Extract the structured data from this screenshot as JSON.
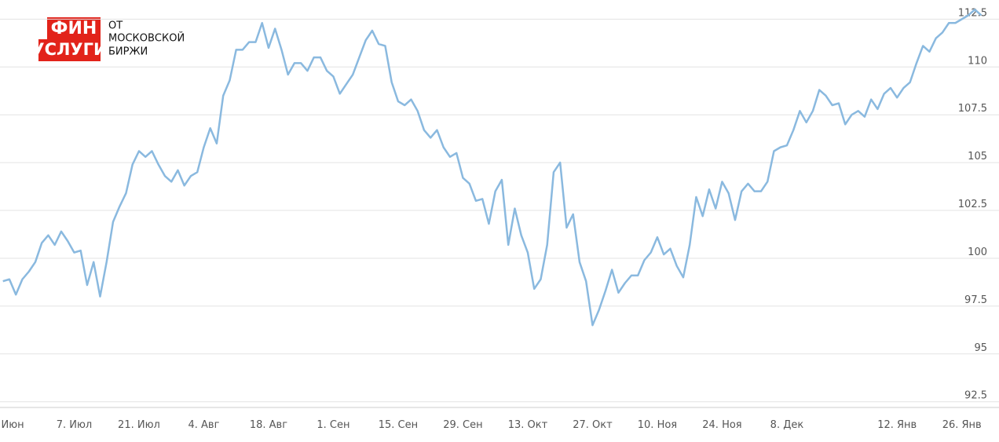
{
  "logo": {
    "line1": "ФИН",
    "line2": "УСЛУГИ",
    "caption": [
      "ОТ",
      "МОСКОВСКОЙ",
      "БИРЖИ"
    ]
  },
  "chart_data": {
    "type": "line",
    "color": "#8ab9df",
    "grid": true,
    "ylim": [
      92.2,
      113.5
    ],
    "yticks": [
      92.5,
      95,
      97.5,
      100,
      102.5,
      105,
      107.5,
      110,
      112.5
    ],
    "categories": [
      null,
      ". Июн",
      null,
      null,
      null,
      null,
      null,
      null,
      null,
      null,
      null,
      "7. Июл",
      null,
      null,
      null,
      null,
      null,
      null,
      null,
      null,
      null,
      "21. Июл",
      null,
      null,
      null,
      null,
      null,
      null,
      null,
      null,
      null,
      "4. Авг",
      null,
      null,
      null,
      null,
      null,
      null,
      null,
      null,
      null,
      "18. Авг",
      null,
      null,
      null,
      null,
      null,
      null,
      null,
      null,
      null,
      "1. Сен",
      null,
      null,
      null,
      null,
      null,
      null,
      null,
      null,
      null,
      "15. Сен",
      null,
      null,
      null,
      null,
      null,
      null,
      null,
      null,
      null,
      "29. Сен",
      null,
      null,
      null,
      null,
      null,
      null,
      null,
      null,
      null,
      "13. Окт",
      null,
      null,
      null,
      null,
      null,
      null,
      null,
      null,
      null,
      "27. Окт",
      null,
      null,
      null,
      null,
      null,
      null,
      null,
      null,
      null,
      "10. Ноя",
      null,
      null,
      null,
      null,
      null,
      null,
      null,
      null,
      null,
      "24. Ноя",
      null,
      null,
      null,
      null,
      null,
      null,
      null,
      null,
      null,
      "8. Дек",
      null,
      null,
      null,
      null,
      null,
      null,
      null,
      null,
      null,
      null,
      null,
      null,
      null,
      null,
      null,
      null,
      "12. Янв",
      null,
      null,
      null,
      null,
      null,
      null,
      null,
      null,
      null,
      "26. Янв",
      null,
      null,
      null
    ],
    "values": [
      98.8,
      98.9,
      98.1,
      98.9,
      99.3,
      99.8,
      100.8,
      101.2,
      100.7,
      101.4,
      100.9,
      100.3,
      100.4,
      98.6,
      99.8,
      98.0,
      99.8,
      101.9,
      102.7,
      103.4,
      104.9,
      105.6,
      105.3,
      105.6,
      104.9,
      104.3,
      104.0,
      104.6,
      103.8,
      104.3,
      104.5,
      105.8,
      106.8,
      106.0,
      108.5,
      109.3,
      110.9,
      110.9,
      111.3,
      111.3,
      112.3,
      111.0,
      112.0,
      110.9,
      109.6,
      110.2,
      110.2,
      109.8,
      110.5,
      110.5,
      109.8,
      109.5,
      108.6,
      109.1,
      109.6,
      110.5,
      111.4,
      111.9,
      111.2,
      111.1,
      109.2,
      108.2,
      108.0,
      108.3,
      107.7,
      106.7,
      106.3,
      106.7,
      105.8,
      105.3,
      105.5,
      104.2,
      103.9,
      103.0,
      103.1,
      101.8,
      103.5,
      104.1,
      100.7,
      102.6,
      101.2,
      100.3,
      98.4,
      98.9,
      100.7,
      104.5,
      105.0,
      101.6,
      102.3,
      99.8,
      98.8,
      96.5,
      97.3,
      98.3,
      99.4,
      98.2,
      98.7,
      99.1,
      99.1,
      99.9,
      100.3,
      101.1,
      100.2,
      100.5,
      99.6,
      99.0,
      100.7,
      103.2,
      102.2,
      103.6,
      102.6,
      104.0,
      103.4,
      102.0,
      103.5,
      103.9,
      103.5,
      103.5,
      104.0,
      105.6,
      105.8,
      105.9,
      106.7,
      107.7,
      107.1,
      107.7,
      108.8,
      108.5,
      108.0,
      108.1,
      107.0,
      107.5,
      107.7,
      107.4,
      108.3,
      107.8,
      108.6,
      108.9,
      108.4,
      108.9,
      109.2,
      110.2,
      111.1,
      110.8,
      111.5,
      111.8,
      112.3,
      112.3,
      112.5,
      112.7,
      113.0,
      112.7
    ]
  }
}
